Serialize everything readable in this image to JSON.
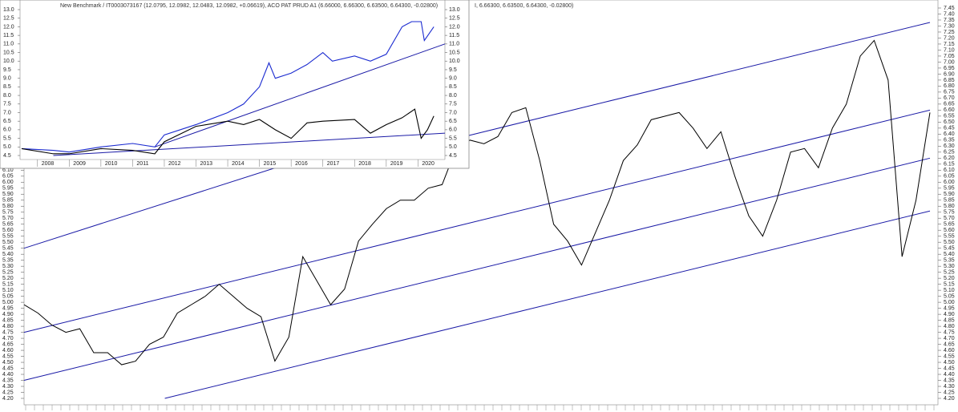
{
  "chart_data": [
    {
      "type": "line",
      "title": "I, 6.66300, 6.63500, 6.64300, -0.02800)",
      "series": [
        {
          "color": "#000000",
          "values": [
            4.98,
            4.91,
            4.81,
            4.75,
            4.78,
            4.58,
            4.58,
            4.48,
            4.51,
            4.65,
            4.71,
            4.91,
            4.98,
            5.05,
            5.15,
            5.05,
            4.95,
            4.88,
            4.51,
            4.71,
            5.38,
            5.18,
            4.98,
            5.11,
            5.51,
            5.65,
            5.78,
            5.85,
            5.85,
            5.95,
            5.98,
            6.28,
            6.35,
            6.32,
            6.38,
            6.58,
            6.62,
            6.18,
            5.65,
            5.51,
            5.31,
            5.58,
            5.85,
            6.18,
            6.31,
            6.52,
            6.55,
            6.58,
            6.45,
            6.28,
            6.42,
            6.05,
            5.72,
            5.55,
            5.85,
            6.25,
            6.28,
            6.12,
            6.45,
            6.65,
            7.05,
            7.18,
            6.85,
            5.38,
            5.85,
            6.58
          ]
        }
      ],
      "trendlines": [
        {
          "x": [
            0,
            23.3
          ],
          "values": [
            5.45,
            6.315
          ]
        },
        {
          "x": [
            31.6,
            65
          ],
          "values": [
            6.38,
            7.33
          ]
        },
        {
          "x": [
            0,
            65
          ],
          "values": [
            4.75,
            6.6
          ]
        },
        {
          "x": [
            0,
            65
          ],
          "values": [
            4.35,
            6.2
          ]
        },
        {
          "x": [
            10.1,
            65
          ],
          "values": [
            4.2,
            5.76
          ]
        }
      ],
      "trend_color": "#1a1aa6",
      "ylim": [
        4.2,
        7.45
      ],
      "yticks": [
        {
          "value": 4.2,
          "label": "4.20"
        },
        {
          "value": 4.25,
          "label": "4.25"
        },
        {
          "value": 4.3,
          "label": "4.30"
        },
        {
          "value": 4.35,
          "label": "4.35"
        },
        {
          "value": 4.4,
          "label": "4.40"
        },
        {
          "value": 4.45,
          "label": "4.45"
        },
        {
          "value": 4.5,
          "label": "4.50"
        },
        {
          "value": 4.55,
          "label": "4.55"
        },
        {
          "value": 4.6,
          "label": "4.60"
        },
        {
          "value": 4.65,
          "label": "4.65"
        },
        {
          "value": 4.7,
          "label": "4.70"
        },
        {
          "value": 4.75,
          "label": "4.75"
        },
        {
          "value": 4.8,
          "label": "4.80"
        },
        {
          "value": 4.85,
          "label": "4.85"
        },
        {
          "value": 4.9,
          "label": "4.90"
        },
        {
          "value": 4.95,
          "label": "4.95"
        },
        {
          "value": 5.0,
          "label": "5.00"
        },
        {
          "value": 5.05,
          "label": "5.05"
        },
        {
          "value": 5.1,
          "label": "5.10"
        },
        {
          "value": 5.15,
          "label": "5.15"
        },
        {
          "value": 5.2,
          "label": "5.20"
        },
        {
          "value": 5.25,
          "label": "5.25"
        },
        {
          "value": 5.3,
          "label": "5.30"
        },
        {
          "value": 5.35,
          "label": "5.35"
        },
        {
          "value": 5.4,
          "label": "5.40"
        },
        {
          "value": 5.45,
          "label": "5.45"
        },
        {
          "value": 5.5,
          "label": "5.50"
        },
        {
          "value": 5.55,
          "label": "5.55"
        },
        {
          "value": 5.6,
          "label": "5.60"
        },
        {
          "value": 5.65,
          "label": "5.65"
        },
        {
          "value": 5.7,
          "label": "5.70"
        },
        {
          "value": 5.75,
          "label": "5.75"
        },
        {
          "value": 5.8,
          "label": "5.80"
        },
        {
          "value": 5.85,
          "label": "5.85"
        },
        {
          "value": 5.9,
          "label": "5.90"
        },
        {
          "value": 5.95,
          "label": "5.95"
        },
        {
          "value": 6.0,
          "label": "6.00"
        },
        {
          "value": 6.05,
          "label": "6.05"
        },
        {
          "value": 6.1,
          "label": "6.10"
        },
        {
          "value": 6.15,
          "label": "6.15"
        },
        {
          "value": 6.2,
          "label": "6.20"
        },
        {
          "value": 6.25,
          "label": "6.25"
        },
        {
          "value": 6.3,
          "label": "6.30"
        },
        {
          "value": 6.35,
          "label": "6.35"
        },
        {
          "value": 6.4,
          "label": "6.40"
        },
        {
          "value": 6.45,
          "label": "6.45"
        },
        {
          "value": 6.5,
          "label": "6.50"
        },
        {
          "value": 6.55,
          "label": "6.55"
        },
        {
          "value": 6.6,
          "label": "6.60"
        },
        {
          "value": 6.65,
          "label": "6.65"
        },
        {
          "value": 6.7,
          "label": "6.70"
        },
        {
          "value": 6.75,
          "label": "6.75"
        },
        {
          "value": 6.8,
          "label": "6.80"
        },
        {
          "value": 6.85,
          "label": "6.85"
        },
        {
          "value": 6.9,
          "label": "6.90"
        },
        {
          "value": 6.95,
          "label": "6.95"
        },
        {
          "value": 7.0,
          "label": "7.00"
        },
        {
          "value": 7.05,
          "label": "7.05"
        },
        {
          "value": 7.1,
          "label": "7.10"
        },
        {
          "value": 7.15,
          "label": "7.15"
        },
        {
          "value": 7.2,
          "label": "7.20"
        },
        {
          "value": 7.25,
          "label": "7.25"
        },
        {
          "value": 7.3,
          "label": "7.30"
        },
        {
          "value": 7.35,
          "label": "7.35"
        },
        {
          "value": 7.4,
          "label": "7.40"
        },
        {
          "value": 7.45,
          "label": "7.45"
        }
      ]
    },
    {
      "type": "line",
      "title": "New Benchmark / IT0003073167 (12.0795, 12.0982, 12.0483, 12.0982, +0.06619), ACO PAT PRUD A1 (6.66000, 6.66300, 6.63500, 6.64300, -0.02800)",
      "series": [
        {
          "color": "#1a2ad0",
          "x": [
            2007.5,
            2008.5,
            2009,
            2010,
            2011,
            2011.7,
            2012,
            2013,
            2014,
            2014.5,
            2015,
            2015.3,
            2015.5,
            2016,
            2016.5,
            2017,
            2017.3,
            2018,
            2018.5,
            2019,
            2019.5,
            2019.8,
            2020.1,
            2020.2,
            2020.5
          ],
          "values": [
            4.9,
            4.8,
            4.7,
            5.0,
            5.2,
            5.0,
            5.7,
            6.3,
            7.0,
            7.5,
            8.5,
            9.9,
            9.0,
            9.3,
            9.8,
            10.5,
            10.0,
            10.3,
            10.0,
            10.4,
            12.0,
            12.3,
            12.3,
            11.2,
            12.0
          ]
        },
        {
          "color": "#000000",
          "x": [
            2007.5,
            2008.5,
            2009,
            2010,
            2011,
            2011.7,
            2012,
            2013,
            2014,
            2014.5,
            2015,
            2015.5,
            2016,
            2016.5,
            2017,
            2018,
            2018.5,
            2019,
            2019.5,
            2019.9,
            2020.1,
            2020.3,
            2020.5
          ],
          "values": [
            4.9,
            4.6,
            4.6,
            4.9,
            4.8,
            4.6,
            5.3,
            6.2,
            6.5,
            6.3,
            6.6,
            6.0,
            5.5,
            6.4,
            6.5,
            6.6,
            5.8,
            6.3,
            6.7,
            7.2,
            5.5,
            6.0,
            6.8
          ]
        }
      ],
      "trendlines": [
        {
          "x": [
            2011.7,
            2020.85
          ],
          "values": [
            5.0,
            11.0
          ]
        },
        {
          "x": [
            2008.5,
            2020.85
          ],
          "values": [
            4.5,
            5.8
          ]
        }
      ],
      "trend_color": "#1a1aa6",
      "xlim": [
        2007.45,
        2020.85
      ],
      "xticks": [
        2008,
        2009,
        2010,
        2011,
        2012,
        2013,
        2014,
        2015,
        2016,
        2017,
        2018,
        2019,
        2020
      ],
      "ylim": [
        4.5,
        13.0
      ],
      "yticks": [
        {
          "value": 4.5,
          "label": "4.5"
        },
        {
          "value": 5.0,
          "label": "5.0"
        },
        {
          "value": 5.5,
          "label": "5.5"
        },
        {
          "value": 6.0,
          "label": "6.0"
        },
        {
          "value": 6.5,
          "label": "6.5"
        },
        {
          "value": 7.0,
          "label": "7.0"
        },
        {
          "value": 7.5,
          "label": "7.5"
        },
        {
          "value": 8.0,
          "label": "8.0"
        },
        {
          "value": 8.5,
          "label": "8.5"
        },
        {
          "value": 9.0,
          "label": "9.0"
        },
        {
          "value": 9.5,
          "label": "9.5"
        },
        {
          "value": 10.0,
          "label": "10.0"
        },
        {
          "value": 10.5,
          "label": "10.5"
        },
        {
          "value": 11.0,
          "label": "11.0"
        },
        {
          "value": 11.5,
          "label": "11.5"
        },
        {
          "value": 12.0,
          "label": "12.0"
        },
        {
          "value": 12.5,
          "label": "12.5"
        },
        {
          "value": 13.0,
          "label": "13.0"
        }
      ]
    }
  ]
}
